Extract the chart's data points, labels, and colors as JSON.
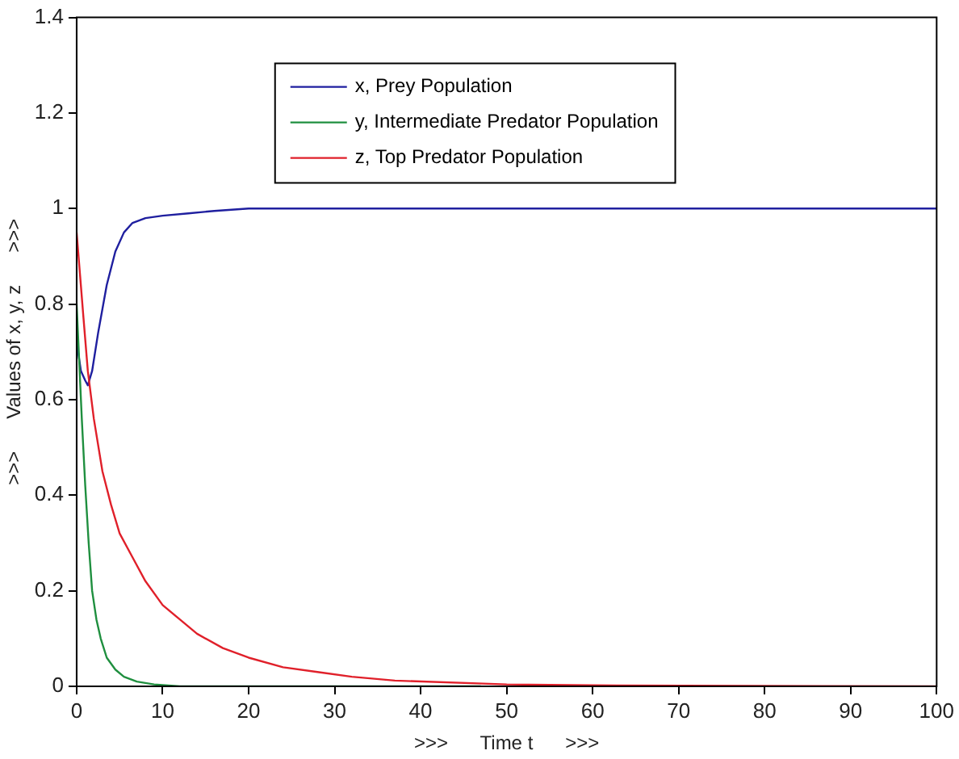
{
  "chart_data": {
    "type": "line",
    "xlabel": ">>>      Time t      >>>",
    "ylabel": ">>>      Values of x, y, z      >>>",
    "xlim": [
      0,
      100
    ],
    "xticks": [
      0,
      10,
      20,
      30,
      40,
      50,
      60,
      70,
      80,
      90,
      100
    ],
    "ylim": [
      0,
      1.4
    ],
    "yticks": [
      0,
      0.2,
      0.4,
      0.6,
      0.8,
      1,
      1.2,
      1.4
    ],
    "grid": false,
    "legend": "top",
    "marker": "none",
    "line_style": "solid",
    "series": [
      {
        "name": "x, Prey Population",
        "color": "#1f1f9f",
        "x": [
          0,
          0.5,
          1,
          1.3,
          1.8,
          2.5,
          3.5,
          4.5,
          5.5,
          6.5,
          8,
          10,
          13,
          16,
          20,
          30,
          50,
          100
        ],
        "values": [
          0.72,
          0.66,
          0.64,
          0.63,
          0.66,
          0.74,
          0.84,
          0.91,
          0.95,
          0.97,
          0.98,
          0.985,
          0.99,
          0.995,
          1,
          1,
          1,
          1
        ]
      },
      {
        "name": "y, Intermediate Predator Population",
        "color": "#1f8f3f",
        "x": [
          0,
          0.3,
          0.6,
          1,
          1.4,
          1.8,
          2.3,
          2.8,
          3.5,
          4.5,
          5.5,
          7,
          9,
          12,
          47
        ],
        "values": [
          0.8,
          0.68,
          0.56,
          0.42,
          0.3,
          0.2,
          0.14,
          0.1,
          0.06,
          0.035,
          0.02,
          0.01,
          0.004,
          0,
          0
        ]
      },
      {
        "name": "z, Top Predator Population",
        "color": "#e0202a",
        "x": [
          0,
          0.4,
          0.8,
          1.3,
          2,
          3,
          4,
          5,
          6.5,
          8,
          10,
          12,
          14,
          17,
          20,
          24,
          28,
          32,
          37,
          50,
          60,
          100
        ],
        "values": [
          0.95,
          0.86,
          0.77,
          0.66,
          0.56,
          0.45,
          0.38,
          0.32,
          0.27,
          0.22,
          0.17,
          0.14,
          0.11,
          0.08,
          0.06,
          0.04,
          0.03,
          0.02,
          0.012,
          0.004,
          0.002,
          0
        ]
      }
    ]
  }
}
